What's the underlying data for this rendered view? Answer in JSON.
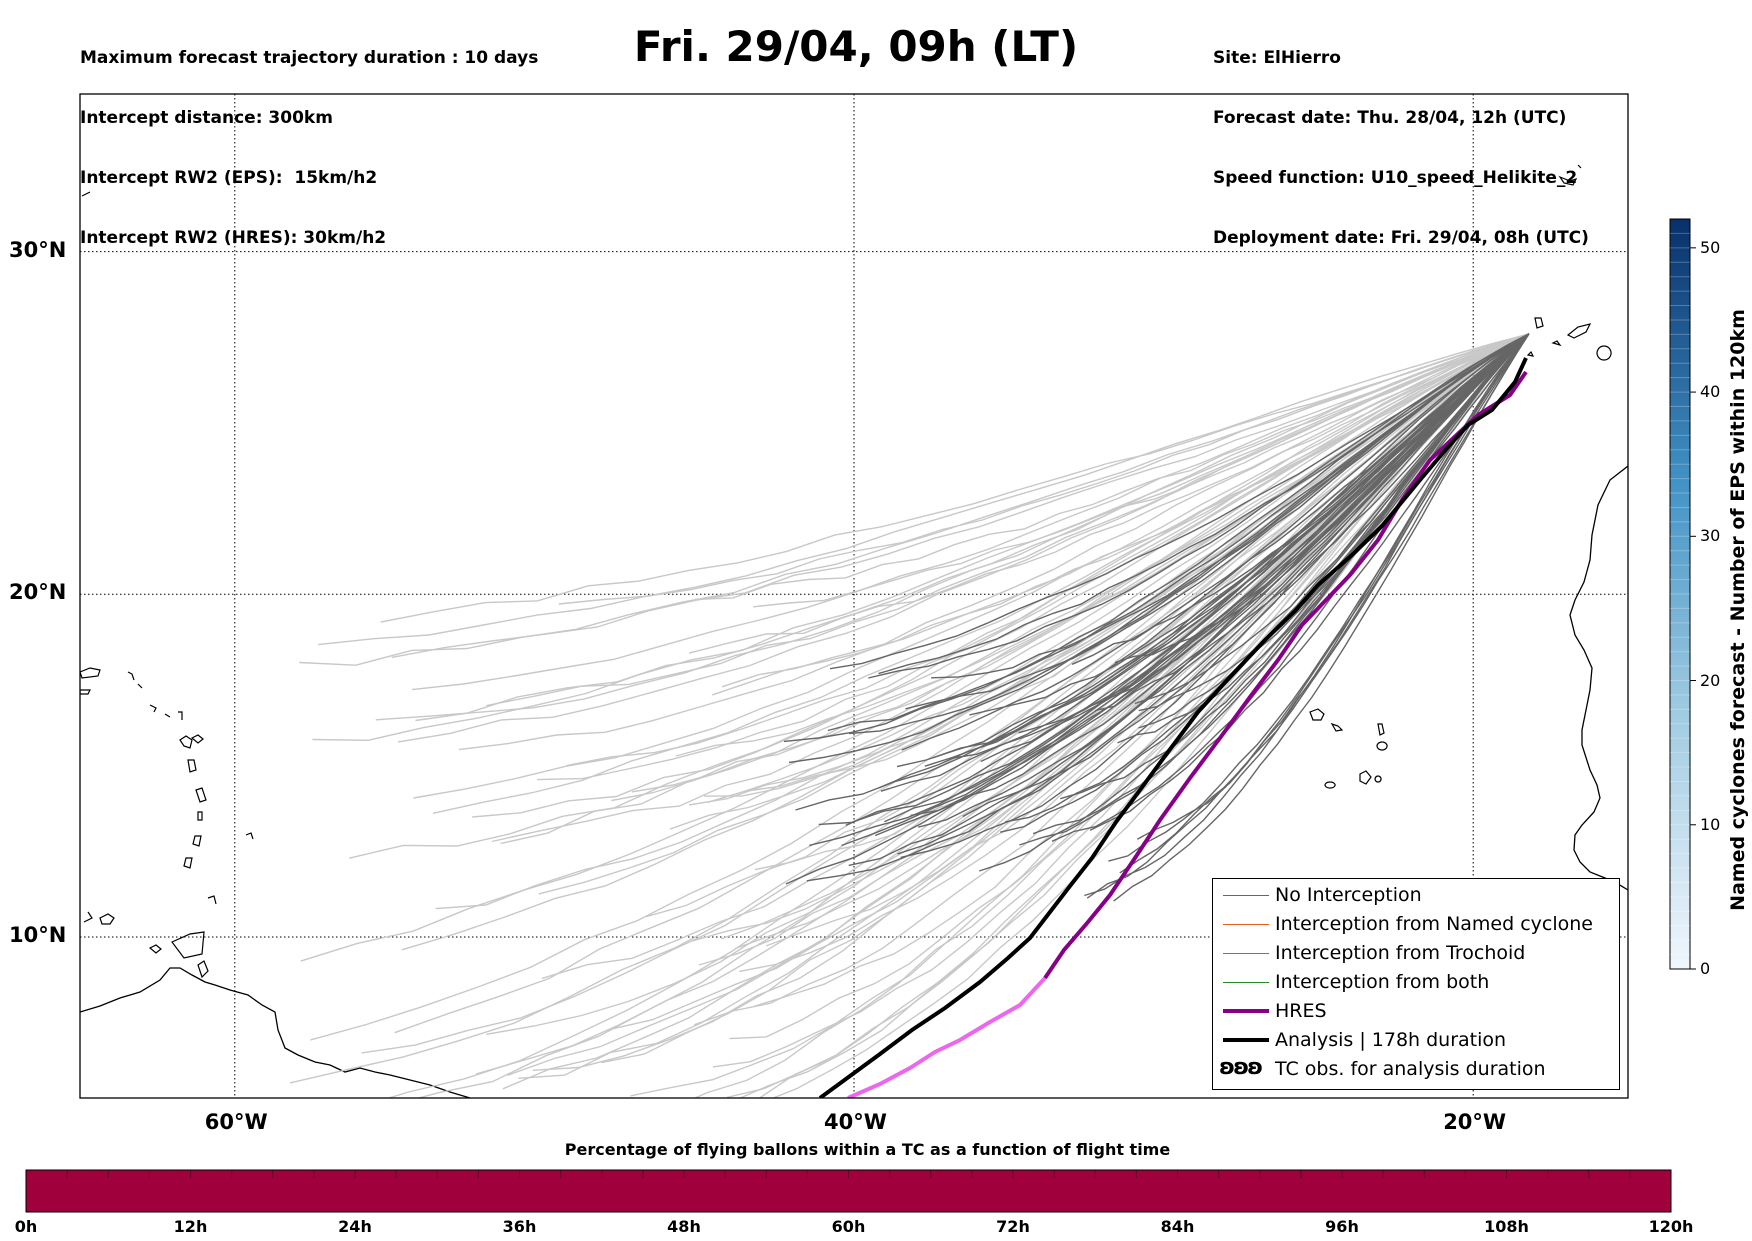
{
  "header": {
    "left_lines": [
      "Maximum forecast trajectory duration : 10 days",
      "Intercept distance: 300km",
      "Intercept RW2 (EPS):  15km/h2",
      "Intercept RW2 (HRES): 30km/h2"
    ],
    "title": "Fri. 29/04, 09h (LT)",
    "right_lines": [
      "Site: ElHierro",
      "Forecast date: Thu. 28/04, 12h (UTC)",
      "Speed function: U10_speed_Helikite_2",
      "Deployment date: Fri. 29/04, 08h (UTC)"
    ]
  },
  "map": {
    "lon_range": [
      -65,
      -15
    ],
    "lat_range": [
      5.3,
      34.6
    ],
    "lat_labels": [
      {
        "lat": 30,
        "text": "30°N"
      },
      {
        "lat": 20,
        "text": "20°N"
      },
      {
        "lat": 10,
        "text": "10°N"
      }
    ],
    "lon_labels": [
      {
        "lon": -60,
        "text": "60°W"
      },
      {
        "lon": -40,
        "text": "40°W"
      },
      {
        "lon": -20,
        "text": "20°W"
      }
    ],
    "gridlines": "dotted",
    "launch_site": {
      "lon": -18.2,
      "lat": 27.6
    },
    "colors": {
      "no_interception": "#666666",
      "no_interception_faded": "#c8c8c8",
      "named_cyclone": "#e8601c",
      "trochoid": "#808020",
      "both": "#2a8a2a",
      "hres": "#880088",
      "hres_light": "#ee66ee",
      "analysis": "#000000"
    }
  },
  "legend": {
    "items": [
      {
        "label": "No Interception",
        "color": "#666666",
        "width": 1.5
      },
      {
        "label": "Interception from Named cyclone",
        "color": "#e8601c",
        "width": 1.5
      },
      {
        "label": "Interception from Trochoid",
        "color": "#808020",
        "width": 1.5
      },
      {
        "label": "Interception from both",
        "color": "#2a8a2a",
        "width": 1.5
      },
      {
        "label": "HRES",
        "color": "#880088",
        "width": 4
      },
      {
        "label": "Analysis | 178h duration",
        "color": "#000000",
        "width": 4
      }
    ],
    "tc_label": "TC obs. for analysis duration",
    "tc_glyph": "ʚʚʚ"
  },
  "colorbar_right": {
    "label": "Named cyclones forecast - Number of EPS within 120km",
    "ticks": [
      "0",
      "10",
      "20",
      "30",
      "40",
      "50"
    ],
    "range": [
      0,
      52
    ]
  },
  "colorbar_bottom": {
    "title": "Percentage of flying ballons within a TC as a function of flight time",
    "ticks": [
      "0h",
      "12h",
      "24h",
      "36h",
      "48h",
      "60h",
      "72h",
      "84h",
      "96h",
      "108h",
      "120h"
    ],
    "color": "#a0003c"
  }
}
